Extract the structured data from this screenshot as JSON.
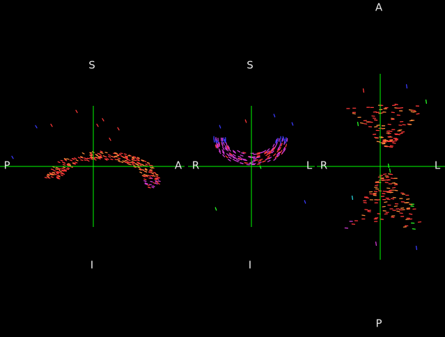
{
  "colors": {
    "background": "#000000",
    "crosshair": "#00ff00",
    "label": "#e8e8e8",
    "fiber_red": "#ff3838",
    "fiber_blue": "#3a3aff",
    "fiber_magenta": "#d13bd6",
    "fiber_green": "#28ff28",
    "fiber_orange": "#ff8a3a",
    "fiber_cyan": "#28d6e0"
  },
  "views": {
    "sagittal": {
      "orientation_labels": {
        "top": "S",
        "bottom": "I",
        "left": "P",
        "right": "A"
      }
    },
    "coronal": {
      "orientation_labels": {
        "top": "S",
        "bottom": "I",
        "left": "R",
        "right": "L"
      }
    },
    "axial": {
      "orientation_labels": {
        "top": "A",
        "bottom": "P",
        "left": "R",
        "right": "L"
      }
    }
  }
}
